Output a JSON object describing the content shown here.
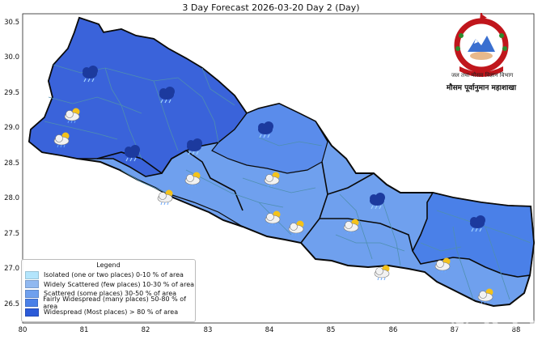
{
  "title": "3 Day Forecast 2026-03-20 Day 2 (Day)",
  "axes": {
    "x_ticks": [
      "80",
      "81",
      "82",
      "83",
      "84",
      "85",
      "86",
      "87",
      "88"
    ],
    "y_ticks": [
      "30.5",
      "30.0",
      "29.5",
      "29.0",
      "28.5",
      "28.0",
      "27.5",
      "27.0",
      "26.5"
    ]
  },
  "header": {
    "agency_line1": "जल तथा मौसम विज्ञान विभाग",
    "agency_line2": "मौसम पूर्वानुमान महाशाखा",
    "watermark": "© RSS"
  },
  "legend": {
    "title": "Legend",
    "items": [
      {
        "label": "Isolated (one or two places)  0-10 % of area",
        "color": "#b3e5fc"
      },
      {
        "label": "Widely Scattered (few places)  10-30 % of area",
        "color": "#90b8f0"
      },
      {
        "label": "Scattered (some places)  30-50 % of area",
        "color": "#6fa0ee"
      },
      {
        "label": "Fairly Widespread (many places)  50-80 % of area",
        "color": "#4a80e8"
      },
      {
        "label": "Widespread (Most places) > 80 % of area",
        "color": "#2b5ad8"
      }
    ]
  },
  "colors": {
    "widespread": "#3a63da",
    "fairly_widespread": "#4a80e8",
    "scattered": "#6fa0ee",
    "border": "#0a0a0a",
    "district_line": "#4f8fb0"
  },
  "icons": [
    "rain-cloud-icon",
    "rain-cloud-icon",
    "rain-cloud-icon",
    "rain-cloud-icon",
    "rain-cloud-icon",
    "rain-cloud-icon",
    "rain-cloud-icon",
    "sun-cloud-rain-icon",
    "sun-cloud-rain-icon",
    "sun-cloud-rain-icon",
    "sun-cloud-rain-icon",
    "sun-cloud-rain-icon",
    "sun-cloud-rain-icon",
    "sun-cloud-rain-icon",
    "sun-cloud-rain-icon",
    "sun-cloud-rain-icon",
    "sun-cloud-rain-icon",
    "sun-cloud-rain-icon"
  ]
}
